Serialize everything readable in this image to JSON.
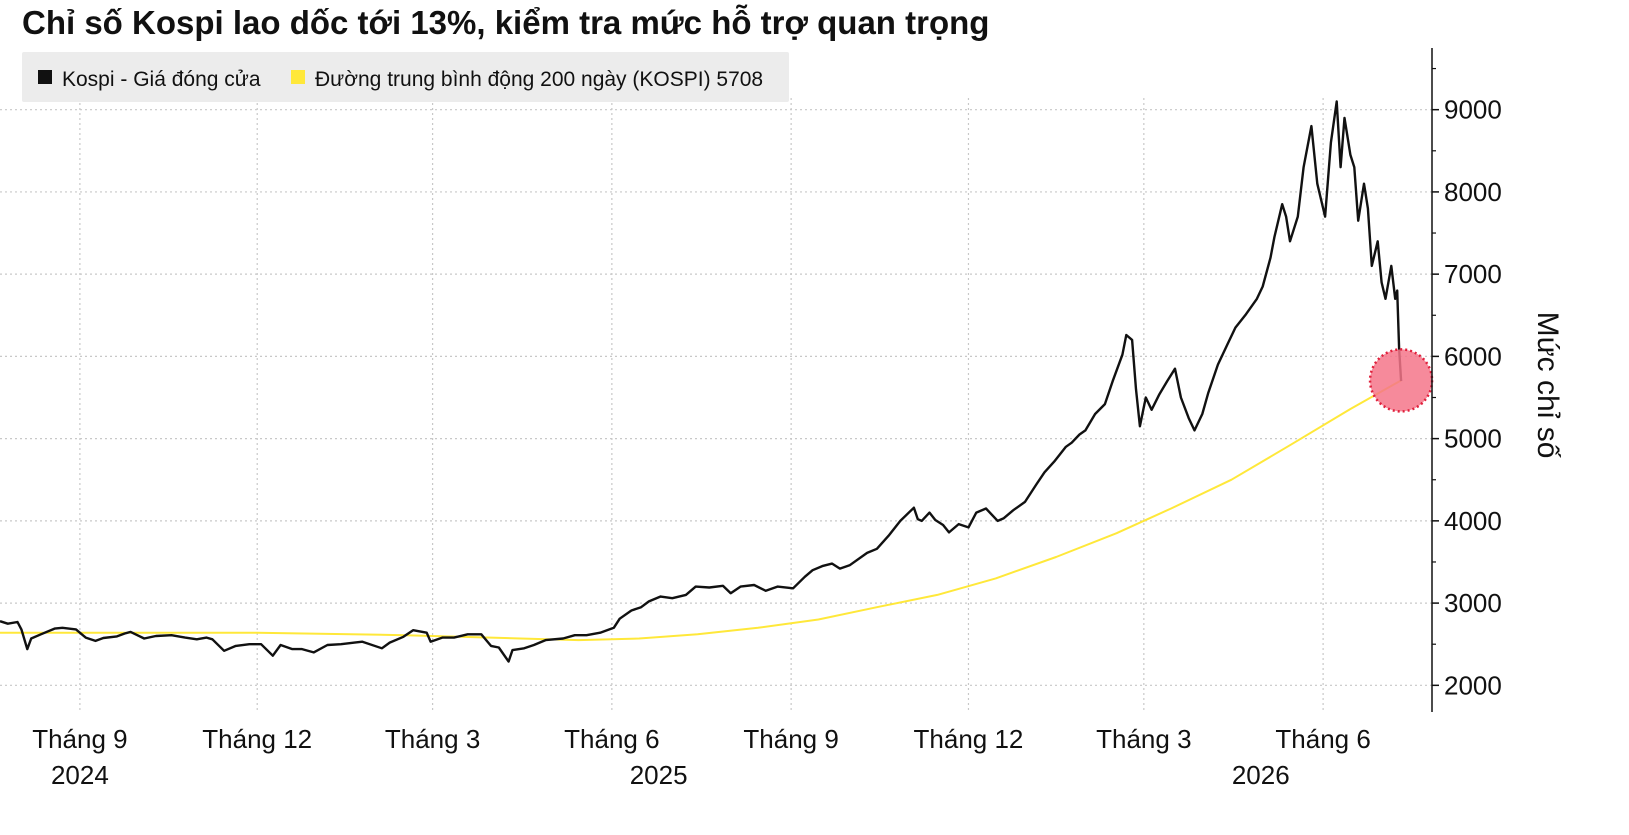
{
  "chart_data": {
    "type": "line",
    "title": "Chỉ số Kospi lao dốc tới 13%, kiểm tra mức hỗ trợ quan trọng",
    "ylabel": "Mức chỉ số",
    "ylim": [
      1700,
      9750
    ],
    "y_ticks": [
      2000,
      3000,
      4000,
      5000,
      6000,
      7000,
      8000,
      9000
    ],
    "x_range": [
      "2024-07-22",
      "2026-07-12"
    ],
    "x_ticks": [
      {
        "date": "2024-09-01",
        "label": "Tháng 9"
      },
      {
        "date": "2024-12-01",
        "label": "Tháng 12"
      },
      {
        "date": "2025-03-01",
        "label": "Tháng 3"
      },
      {
        "date": "2025-06-01",
        "label": "Tháng 6"
      },
      {
        "date": "2025-09-01",
        "label": "Tháng 9"
      },
      {
        "date": "2025-12-01",
        "label": "Tháng 12"
      },
      {
        "date": "2026-03-01",
        "label": "Tháng 3"
      },
      {
        "date": "2026-06-01",
        "label": "Tháng 6"
      }
    ],
    "years": [
      {
        "date": "2024-09-01",
        "label": "2024"
      },
      {
        "date": "2025-06-25",
        "label": "2025"
      },
      {
        "date": "2026-04-30",
        "label": "2026"
      }
    ],
    "grid": true,
    "legend_position": "top-left",
    "legend": [
      {
        "label": "Kospi - Giá đóng cửa",
        "color": "#111111"
      },
      {
        "label": "Đường trung bình động 200 ngày (KOSPI) 5708",
        "color": "#ffe83a"
      }
    ],
    "series": [
      {
        "name": "Kospi - Giá đóng cửa",
        "color": "#111111",
        "points": [
          [
            "2024-07-22",
            2780
          ],
          [
            "2024-07-26",
            2750
          ],
          [
            "2024-07-31",
            2770
          ],
          [
            "2024-08-02",
            2680
          ],
          [
            "2024-08-05",
            2440
          ],
          [
            "2024-08-07",
            2570
          ],
          [
            "2024-08-12",
            2620
          ],
          [
            "2024-08-19",
            2690
          ],
          [
            "2024-08-23",
            2700
          ],
          [
            "2024-08-30",
            2680
          ],
          [
            "2024-09-04",
            2580
          ],
          [
            "2024-09-09",
            2540
          ],
          [
            "2024-09-13",
            2575
          ],
          [
            "2024-09-20",
            2595
          ],
          [
            "2024-09-24",
            2630
          ],
          [
            "2024-09-27",
            2650
          ],
          [
            "2024-10-04",
            2570
          ],
          [
            "2024-10-10",
            2600
          ],
          [
            "2024-10-18",
            2610
          ],
          [
            "2024-10-25",
            2580
          ],
          [
            "2024-10-31",
            2560
          ],
          [
            "2024-11-05",
            2580
          ],
          [
            "2024-11-08",
            2560
          ],
          [
            "2024-11-14",
            2420
          ],
          [
            "2024-11-20",
            2480
          ],
          [
            "2024-11-27",
            2500
          ],
          [
            "2024-12-03",
            2500
          ],
          [
            "2024-12-09",
            2360
          ],
          [
            "2024-12-13",
            2490
          ],
          [
            "2024-12-19",
            2440
          ],
          [
            "2024-12-24",
            2440
          ],
          [
            "2024-12-30",
            2400
          ],
          [
            "2025-01-06",
            2490
          ],
          [
            "2025-01-13",
            2500
          ],
          [
            "2025-01-20",
            2520
          ],
          [
            "2025-01-24",
            2530
          ],
          [
            "2025-02-03",
            2450
          ],
          [
            "2025-02-07",
            2520
          ],
          [
            "2025-02-14",
            2590
          ],
          [
            "2025-02-19",
            2670
          ],
          [
            "2025-02-26",
            2640
          ],
          [
            "2025-02-28",
            2530
          ],
          [
            "2025-03-06",
            2580
          ],
          [
            "2025-03-12",
            2580
          ],
          [
            "2025-03-19",
            2620
          ],
          [
            "2025-03-26",
            2620
          ],
          [
            "2025-03-31",
            2480
          ],
          [
            "2025-04-04",
            2460
          ],
          [
            "2025-04-09",
            2290
          ],
          [
            "2025-04-11",
            2430
          ],
          [
            "2025-04-17",
            2450
          ],
          [
            "2025-04-22",
            2490
          ],
          [
            "2025-04-28",
            2550
          ],
          [
            "2025-05-07",
            2570
          ],
          [
            "2025-05-13",
            2610
          ],
          [
            "2025-05-19",
            2610
          ],
          [
            "2025-05-26",
            2640
          ],
          [
            "2025-06-02",
            2700
          ],
          [
            "2025-06-05",
            2810
          ],
          [
            "2025-06-11",
            2910
          ],
          [
            "2025-06-16",
            2950
          ],
          [
            "2025-06-20",
            3020
          ],
          [
            "2025-06-26",
            3080
          ],
          [
            "2025-07-02",
            3060
          ],
          [
            "2025-07-09",
            3100
          ],
          [
            "2025-07-14",
            3200
          ],
          [
            "2025-07-21",
            3190
          ],
          [
            "2025-07-28",
            3210
          ],
          [
            "2025-08-01",
            3120
          ],
          [
            "2025-08-06",
            3200
          ],
          [
            "2025-08-13",
            3220
          ],
          [
            "2025-08-19",
            3150
          ],
          [
            "2025-08-25",
            3200
          ],
          [
            "2025-09-02",
            3180
          ],
          [
            "2025-09-08",
            3320
          ],
          [
            "2025-09-12",
            3400
          ],
          [
            "2025-09-17",
            3450
          ],
          [
            "2025-09-22",
            3480
          ],
          [
            "2025-09-26",
            3420
          ],
          [
            "2025-10-01",
            3460
          ],
          [
            "2025-10-10",
            3610
          ],
          [
            "2025-10-15",
            3660
          ],
          [
            "2025-10-21",
            3820
          ],
          [
            "2025-10-27",
            4000
          ],
          [
            "2025-11-03",
            4160
          ],
          [
            "2025-11-05",
            4020
          ],
          [
            "2025-11-07",
            4000
          ],
          [
            "2025-11-11",
            4100
          ],
          [
            "2025-11-14",
            4010
          ],
          [
            "2025-11-18",
            3950
          ],
          [
            "2025-11-21",
            3860
          ],
          [
            "2025-11-26",
            3960
          ],
          [
            "2025-12-01",
            3920
          ],
          [
            "2025-12-05",
            4100
          ],
          [
            "2025-12-10",
            4150
          ],
          [
            "2025-12-16",
            4000
          ],
          [
            "2025-12-19",
            4030
          ],
          [
            "2025-12-24",
            4130
          ],
          [
            "2025-12-30",
            4230
          ],
          [
            "2026-01-05",
            4450
          ],
          [
            "2026-01-09",
            4590
          ],
          [
            "2026-01-14",
            4720
          ],
          [
            "2026-01-20",
            4900
          ],
          [
            "2026-01-23",
            4950
          ],
          [
            "2026-01-27",
            5050
          ],
          [
            "2026-01-30",
            5100
          ],
          [
            "2026-02-04",
            5300
          ],
          [
            "2026-02-09",
            5420
          ],
          [
            "2026-02-13",
            5700
          ],
          [
            "2026-02-18",
            6020
          ],
          [
            "2026-02-20",
            6260
          ],
          [
            "2026-02-23",
            6200
          ],
          [
            "2026-02-25",
            5600
          ],
          [
            "2026-02-27",
            5150
          ],
          [
            "2026-03-02",
            5500
          ],
          [
            "2026-03-05",
            5350
          ],
          [
            "2026-03-09",
            5540
          ],
          [
            "2026-03-13",
            5700
          ],
          [
            "2026-03-17",
            5850
          ],
          [
            "2026-03-20",
            5500
          ],
          [
            "2026-03-24",
            5250
          ],
          [
            "2026-03-27",
            5100
          ],
          [
            "2026-03-31",
            5300
          ],
          [
            "2026-04-03",
            5550
          ],
          [
            "2026-04-08",
            5900
          ],
          [
            "2026-04-13",
            6150
          ],
          [
            "2026-04-17",
            6350
          ],
          [
            "2026-04-22",
            6500
          ],
          [
            "2026-04-28",
            6700
          ],
          [
            "2026-05-01",
            6850
          ],
          [
            "2026-05-05",
            7200
          ],
          [
            "2026-05-07",
            7450
          ],
          [
            "2026-05-11",
            7850
          ],
          [
            "2026-05-13",
            7700
          ],
          [
            "2026-05-15",
            7400
          ],
          [
            "2026-05-19",
            7700
          ],
          [
            "2026-05-22",
            8300
          ],
          [
            "2026-05-26",
            8800
          ],
          [
            "2026-05-29",
            8100
          ],
          [
            "2026-06-02",
            7700
          ],
          [
            "2026-06-05",
            8600
          ],
          [
            "2026-06-08",
            9100
          ],
          [
            "2026-06-10",
            8300
          ],
          [
            "2026-06-12",
            8900
          ],
          [
            "2026-06-15",
            8450
          ],
          [
            "2026-06-17",
            8300
          ],
          [
            "2026-06-19",
            7650
          ],
          [
            "2026-06-22",
            8100
          ],
          [
            "2026-06-24",
            7800
          ],
          [
            "2026-06-26",
            7100
          ],
          [
            "2026-06-29",
            7400
          ],
          [
            "2026-07-01",
            6900
          ],
          [
            "2026-07-03",
            6700
          ],
          [
            "2026-07-06",
            7100
          ],
          [
            "2026-07-08",
            6700
          ],
          [
            "2026-07-09",
            6800
          ],
          [
            "2026-07-10",
            6100
          ],
          [
            "2026-07-11",
            5700
          ]
        ]
      },
      {
        "name": "Đường trung bình động 200 ngày (KOSPI) 5708",
        "color": "#ffe83a",
        "points": [
          [
            "2024-07-22",
            2640
          ],
          [
            "2024-12-01",
            2640
          ],
          [
            "2025-02-15",
            2610
          ],
          [
            "2025-04-15",
            2570
          ],
          [
            "2025-05-15",
            2550
          ],
          [
            "2025-06-15",
            2570
          ],
          [
            "2025-07-15",
            2620
          ],
          [
            "2025-08-15",
            2700
          ],
          [
            "2025-09-15",
            2800
          ],
          [
            "2025-10-15",
            2950
          ],
          [
            "2025-11-15",
            3100
          ],
          [
            "2025-12-15",
            3300
          ],
          [
            "2026-01-15",
            3560
          ],
          [
            "2026-02-15",
            3850
          ],
          [
            "2026-03-15",
            4150
          ],
          [
            "2026-04-15",
            4500
          ],
          [
            "2026-05-15",
            4920
          ],
          [
            "2026-06-15",
            5360
          ],
          [
            "2026-07-11",
            5708
          ]
        ]
      }
    ],
    "highlight": {
      "date": "2026-07-11",
      "value": 5708,
      "color": "#f4758a"
    }
  }
}
